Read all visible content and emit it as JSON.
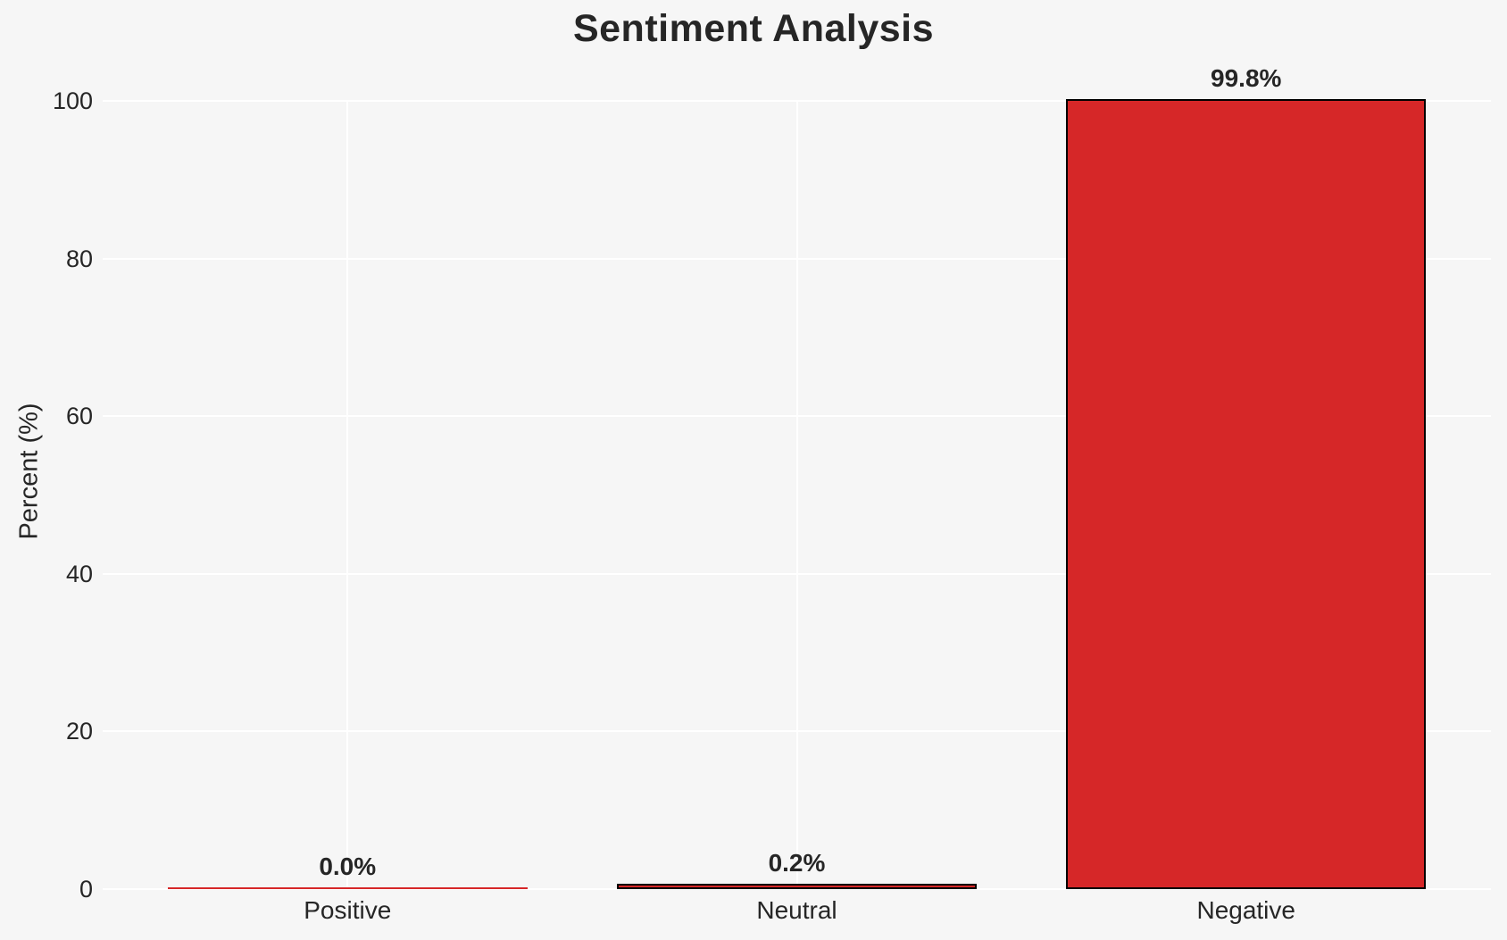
{
  "chart_data": {
    "type": "bar",
    "title": "Sentiment Analysis",
    "xlabel": "",
    "ylabel": "Percent (%)",
    "categories": [
      "Positive",
      "Neutral",
      "Negative"
    ],
    "values": [
      0.0,
      0.2,
      99.8
    ],
    "value_labels": [
      "0.0%",
      "0.2%",
      "99.8%"
    ],
    "yticks": [
      "0",
      "20",
      "40",
      "60",
      "80",
      "100"
    ],
    "ytick_values": [
      0,
      20,
      40,
      60,
      80,
      100
    ],
    "ylim": [
      0,
      100
    ],
    "grid": true,
    "legend": "none",
    "bar_color": "#d62728",
    "bar_edge_color": "#000000",
    "grid_color": "#ffffff",
    "background_color": "#f6f6f6",
    "text_color": "#262626"
  }
}
